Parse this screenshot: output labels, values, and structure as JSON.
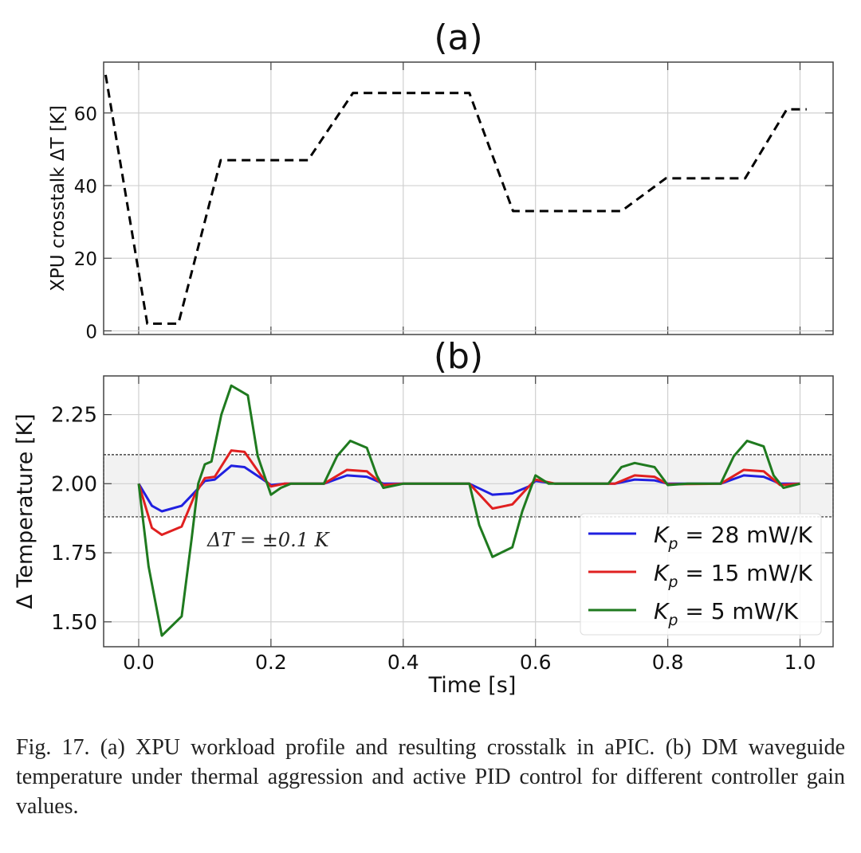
{
  "chart_data": [
    {
      "type": "line",
      "title": "(a)",
      "ylabel": "XPU crosstalk ΔT [K]",
      "xlim": [
        -0.053,
        1.05
      ],
      "ylim": [
        -1,
        74
      ],
      "yticks": [
        "0",
        "20",
        "40",
        "60"
      ],
      "ytick_values": [
        0,
        20,
        40,
        60
      ],
      "xtick_values": [
        0,
        0.2,
        0.4,
        0.6,
        0.8,
        1.0
      ],
      "grid": true,
      "series": [
        {
          "color": "#000000",
          "style": "dashed",
          "x": [
            -0.05,
            0.013,
            0.06,
            0.124,
            0.256,
            0.324,
            0.5,
            0.566,
            0.73,
            0.797,
            0.917,
            0.98,
            1.01
          ],
          "y": [
            70.5,
            2,
            2,
            47,
            47,
            65.5,
            65.5,
            33,
            33,
            42,
            42,
            61,
            61
          ]
        }
      ]
    },
    {
      "type": "line",
      "title": "(b)",
      "xlabel": "Time [s]",
      "ylabel": "Δ Temperature [K]",
      "xlim": [
        -0.053,
        1.05
      ],
      "ylim": [
        1.41,
        2.39
      ],
      "xticks": [
        "0.0",
        "0.2",
        "0.4",
        "0.6",
        "0.8",
        "1.0"
      ],
      "xtick_values": [
        0,
        0.2,
        0.4,
        0.6,
        0.8,
        1.0
      ],
      "yticks": [
        "1.50",
        "1.75",
        "2.00",
        "2.25"
      ],
      "ytick_values": [
        1.5,
        1.75,
        2.0,
        2.25
      ],
      "grid": true,
      "band": {
        "low": 1.88,
        "high": 2.105,
        "label": "ΔT = ±0.1 K"
      },
      "legend_position": "lower-right",
      "series": [
        {
          "name": "K_p = 28 mW/K",
          "legend": [
            "K",
            "p",
            " = 28 mW/K"
          ],
          "color": "#2020e0",
          "x": [
            0,
            0.02,
            0.035,
            0.065,
            0.085,
            0.1,
            0.115,
            0.14,
            0.16,
            0.185,
            0.2,
            0.22,
            0.28,
            0.315,
            0.345,
            0.37,
            0.4,
            0.5,
            0.535,
            0.565,
            0.59,
            0.6,
            0.63,
            0.72,
            0.75,
            0.78,
            0.8,
            0.88,
            0.915,
            0.945,
            0.97,
            1.0
          ],
          "y": [
            2,
            1.92,
            1.9,
            1.92,
            1.97,
            2.01,
            2.015,
            2.065,
            2.06,
            2.02,
            1.995,
            2.0,
            2.0,
            2.03,
            2.025,
            2.0,
            2.0,
            2.0,
            1.96,
            1.965,
            1.99,
            2.01,
            2.0,
            2.0,
            2.015,
            2.012,
            2.0,
            2.0,
            2.03,
            2.025,
            2.0,
            2.0
          ]
        },
        {
          "name": "K_p = 15 mW/K",
          "legend": [
            "K",
            "p",
            " = 15 mW/K"
          ],
          "color": "#e02020",
          "x": [
            0,
            0.02,
            0.035,
            0.065,
            0.085,
            0.1,
            0.115,
            0.14,
            0.16,
            0.185,
            0.2,
            0.22,
            0.28,
            0.315,
            0.345,
            0.37,
            0.4,
            0.5,
            0.535,
            0.565,
            0.59,
            0.6,
            0.63,
            0.72,
            0.75,
            0.78,
            0.8,
            0.88,
            0.915,
            0.945,
            0.97,
            1.0
          ],
          "y": [
            2,
            1.84,
            1.815,
            1.845,
            1.96,
            2.02,
            2.025,
            2.12,
            2.115,
            2.03,
            1.99,
            2.0,
            2.0,
            2.05,
            2.045,
            1.995,
            2.0,
            2.0,
            1.91,
            1.925,
            1.99,
            2.015,
            2.0,
            2.0,
            2.03,
            2.025,
            1.998,
            2.0,
            2.05,
            2.045,
            1.995,
            2.0
          ]
        },
        {
          "name": "K_p = 5 mW/K",
          "legend": [
            "K",
            "p",
            " = 5 mW/K"
          ],
          "color": "#1f7a1f",
          "x": [
            0,
            0.015,
            0.035,
            0.065,
            0.08,
            0.09,
            0.1,
            0.11,
            0.125,
            0.14,
            0.165,
            0.18,
            0.2,
            0.215,
            0.23,
            0.28,
            0.3,
            0.32,
            0.345,
            0.36,
            0.37,
            0.4,
            0.5,
            0.515,
            0.535,
            0.565,
            0.58,
            0.6,
            0.62,
            0.71,
            0.73,
            0.75,
            0.78,
            0.8,
            0.83,
            0.88,
            0.9,
            0.92,
            0.945,
            0.96,
            0.975,
            1.0
          ],
          "y": [
            2,
            1.7,
            1.45,
            1.52,
            1.8,
            2.0,
            2.07,
            2.08,
            2.25,
            2.355,
            2.32,
            2.1,
            1.96,
            1.985,
            2.0,
            2.0,
            2.1,
            2.155,
            2.13,
            2.03,
            1.985,
            2.0,
            2.0,
            1.85,
            1.735,
            1.77,
            1.9,
            2.03,
            2.0,
            2.0,
            2.06,
            2.075,
            2.06,
            1.995,
            2.0,
            2.0,
            2.1,
            2.155,
            2.135,
            2.03,
            1.985,
            2.0
          ]
        }
      ]
    }
  ],
  "caption": "Fig. 17.    (a) XPU workload profile and resulting crosstalk in aPIC. (b) DM waveguide temperature under thermal aggression and active PID control for different controller gain values."
}
